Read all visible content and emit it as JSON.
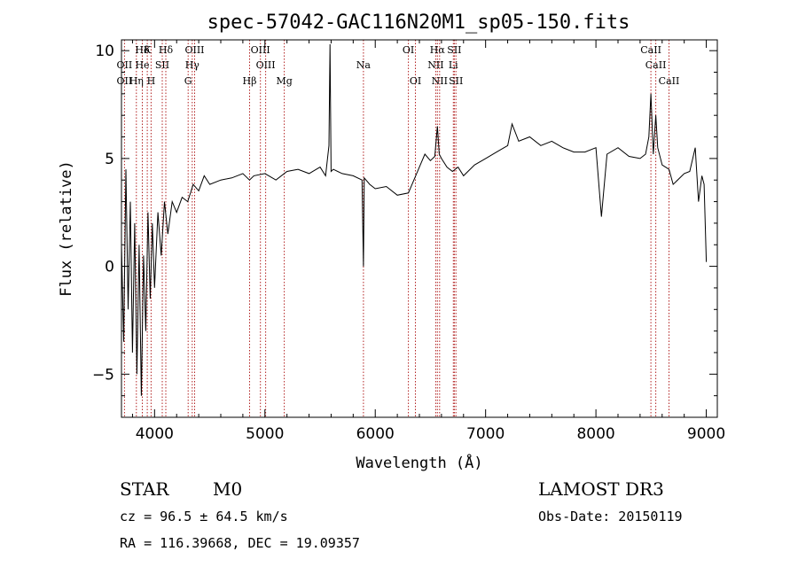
{
  "chart_data": {
    "type": "line",
    "title": "spec-57042-GAC116N20M1_sp05-150.fits",
    "xlabel": "Wavelength (Å)",
    "ylabel": "Flux (relative)",
    "xlim": [
      3700,
      9100
    ],
    "ylim": [
      -7,
      10.5
    ],
    "xticks": [
      4000,
      5000,
      6000,
      7000,
      8000,
      9000
    ],
    "xtick_labels": [
      "4000",
      "5000",
      "6000",
      "7000",
      "8000",
      "9000"
    ],
    "yticks": [
      -5,
      0,
      5,
      10
    ],
    "ytick_labels": [
      "−5",
      "0",
      "5",
      "10"
    ],
    "series": [
      {
        "name": "spectrum",
        "x": [
          3700,
          3720,
          3740,
          3760,
          3780,
          3800,
          3820,
          3840,
          3860,
          3880,
          3900,
          3920,
          3940,
          3960,
          3980,
          4000,
          4030,
          4060,
          4090,
          4120,
          4160,
          4200,
          4250,
          4300,
          4350,
          4400,
          4450,
          4500,
          4600,
          4700,
          4800,
          4860,
          4900,
          5000,
          5100,
          5200,
          5300,
          5400,
          5500,
          5550,
          5580,
          5590,
          5600,
          5620,
          5700,
          5800,
          5880,
          5893,
          5900,
          5950,
          6000,
          6100,
          6200,
          6300,
          6400,
          6450,
          6500,
          6540,
          6563,
          6580,
          6600,
          6650,
          6700,
          6750,
          6800,
          6900,
          7000,
          7100,
          7200,
          7240,
          7300,
          7400,
          7500,
          7600,
          7700,
          7800,
          7900,
          8000,
          8050,
          8100,
          8200,
          8300,
          8400,
          8450,
          8480,
          8498,
          8520,
          8542,
          8560,
          8600,
          8662,
          8700,
          8800,
          8850,
          8900,
          8930,
          8960,
          8980,
          9000
        ],
        "y": [
          1.0,
          -3.5,
          4.5,
          -2.0,
          3.0,
          -4.0,
          2.0,
          -5.0,
          1.0,
          -6.0,
          0.5,
          -3.0,
          2.5,
          -1.5,
          2.0,
          -1.0,
          2.5,
          0.5,
          3.0,
          1.5,
          3.0,
          2.5,
          3.2,
          3.0,
          3.8,
          3.5,
          4.2,
          3.8,
          4.0,
          4.1,
          4.3,
          4.0,
          4.2,
          4.3,
          4.0,
          4.4,
          4.5,
          4.3,
          4.6,
          4.2,
          5.6,
          10.3,
          4.4,
          4.5,
          4.3,
          4.2,
          4.0,
          0.0,
          4.1,
          3.8,
          3.6,
          3.7,
          3.3,
          3.4,
          4.6,
          5.2,
          4.9,
          5.1,
          6.5,
          5.2,
          5.0,
          4.6,
          4.4,
          4.6,
          4.2,
          4.7,
          5.0,
          5.3,
          5.6,
          6.6,
          5.8,
          6.0,
          5.6,
          5.8,
          5.5,
          5.3,
          5.3,
          5.5,
          2.3,
          5.2,
          5.5,
          5.1,
          5.0,
          5.2,
          6.0,
          8.0,
          5.2,
          7.0,
          5.5,
          4.7,
          4.5,
          3.8,
          4.3,
          4.4,
          5.5,
          3.0,
          4.2,
          3.8,
          0.2
        ]
      }
    ],
    "line_labels": [
      {
        "text": "Hδ",
        "wave": 3889,
        "row": 1
      },
      {
        "text": "K",
        "wave": 3934,
        "row": 1
      },
      {
        "text": "Hδ",
        "wave": 4102,
        "row": 1
      },
      {
        "text": "OIII",
        "wave": 4363,
        "row": 1
      },
      {
        "text": "OIII",
        "wave": 4959,
        "row": 1
      },
      {
        "text": "OI",
        "wave": 6300,
        "row": 1
      },
      {
        "text": "Hα",
        "wave": 6563,
        "row": 1
      },
      {
        "text": "SII",
        "wave": 6717,
        "row": 1
      },
      {
        "text": "CaII",
        "wave": 8498,
        "row": 1
      },
      {
        "text": "OII",
        "wave": 3727,
        "row": 2
      },
      {
        "text": "He",
        "wave": 3889,
        "row": 2
      },
      {
        "text": "SII",
        "wave": 4070,
        "row": 2
      },
      {
        "text": "Hγ",
        "wave": 4341,
        "row": 2
      },
      {
        "text": "OIII",
        "wave": 5007,
        "row": 2
      },
      {
        "text": "Na",
        "wave": 5893,
        "row": 2
      },
      {
        "text": "NII",
        "wave": 6548,
        "row": 2
      },
      {
        "text": "Li",
        "wave": 6708,
        "row": 2
      },
      {
        "text": "CaII",
        "wave": 8542,
        "row": 2
      },
      {
        "text": "OII",
        "wave": 3727,
        "row": 3
      },
      {
        "text": "Hη",
        "wave": 3835,
        "row": 3
      },
      {
        "text": "H",
        "wave": 3968,
        "row": 3
      },
      {
        "text": "G",
        "wave": 4304,
        "row": 3
      },
      {
        "text": "Hβ",
        "wave": 4861,
        "row": 3
      },
      {
        "text": "Mg",
        "wave": 5175,
        "row": 3
      },
      {
        "text": "OI",
        "wave": 6364,
        "row": 3
      },
      {
        "text": "NII",
        "wave": 6583,
        "row": 3
      },
      {
        "text": "SII",
        "wave": 6731,
        "row": 3
      },
      {
        "text": "CaII",
        "wave": 8662,
        "row": 3
      }
    ],
    "marker_lines": [
      3727,
      3835,
      3889,
      3934,
      3968,
      4070,
      4102,
      4304,
      4341,
      4363,
      4861,
      4959,
      5007,
      5175,
      5893,
      6300,
      6364,
      6548,
      6563,
      6583,
      6708,
      6717,
      6731,
      8498,
      8542,
      8662
    ]
  },
  "info": {
    "object_class": "STAR",
    "subclass": "M0",
    "survey": "LAMOST DR3",
    "cz": "cz = 96.5 ± 64.5 km/s",
    "obs_date": "Obs-Date: 20150119",
    "coords": "RA = 116.39668, DEC =  19.09357"
  },
  "colors": {
    "marker": "#b22222",
    "line": "#000000",
    "axes": "#000000"
  }
}
